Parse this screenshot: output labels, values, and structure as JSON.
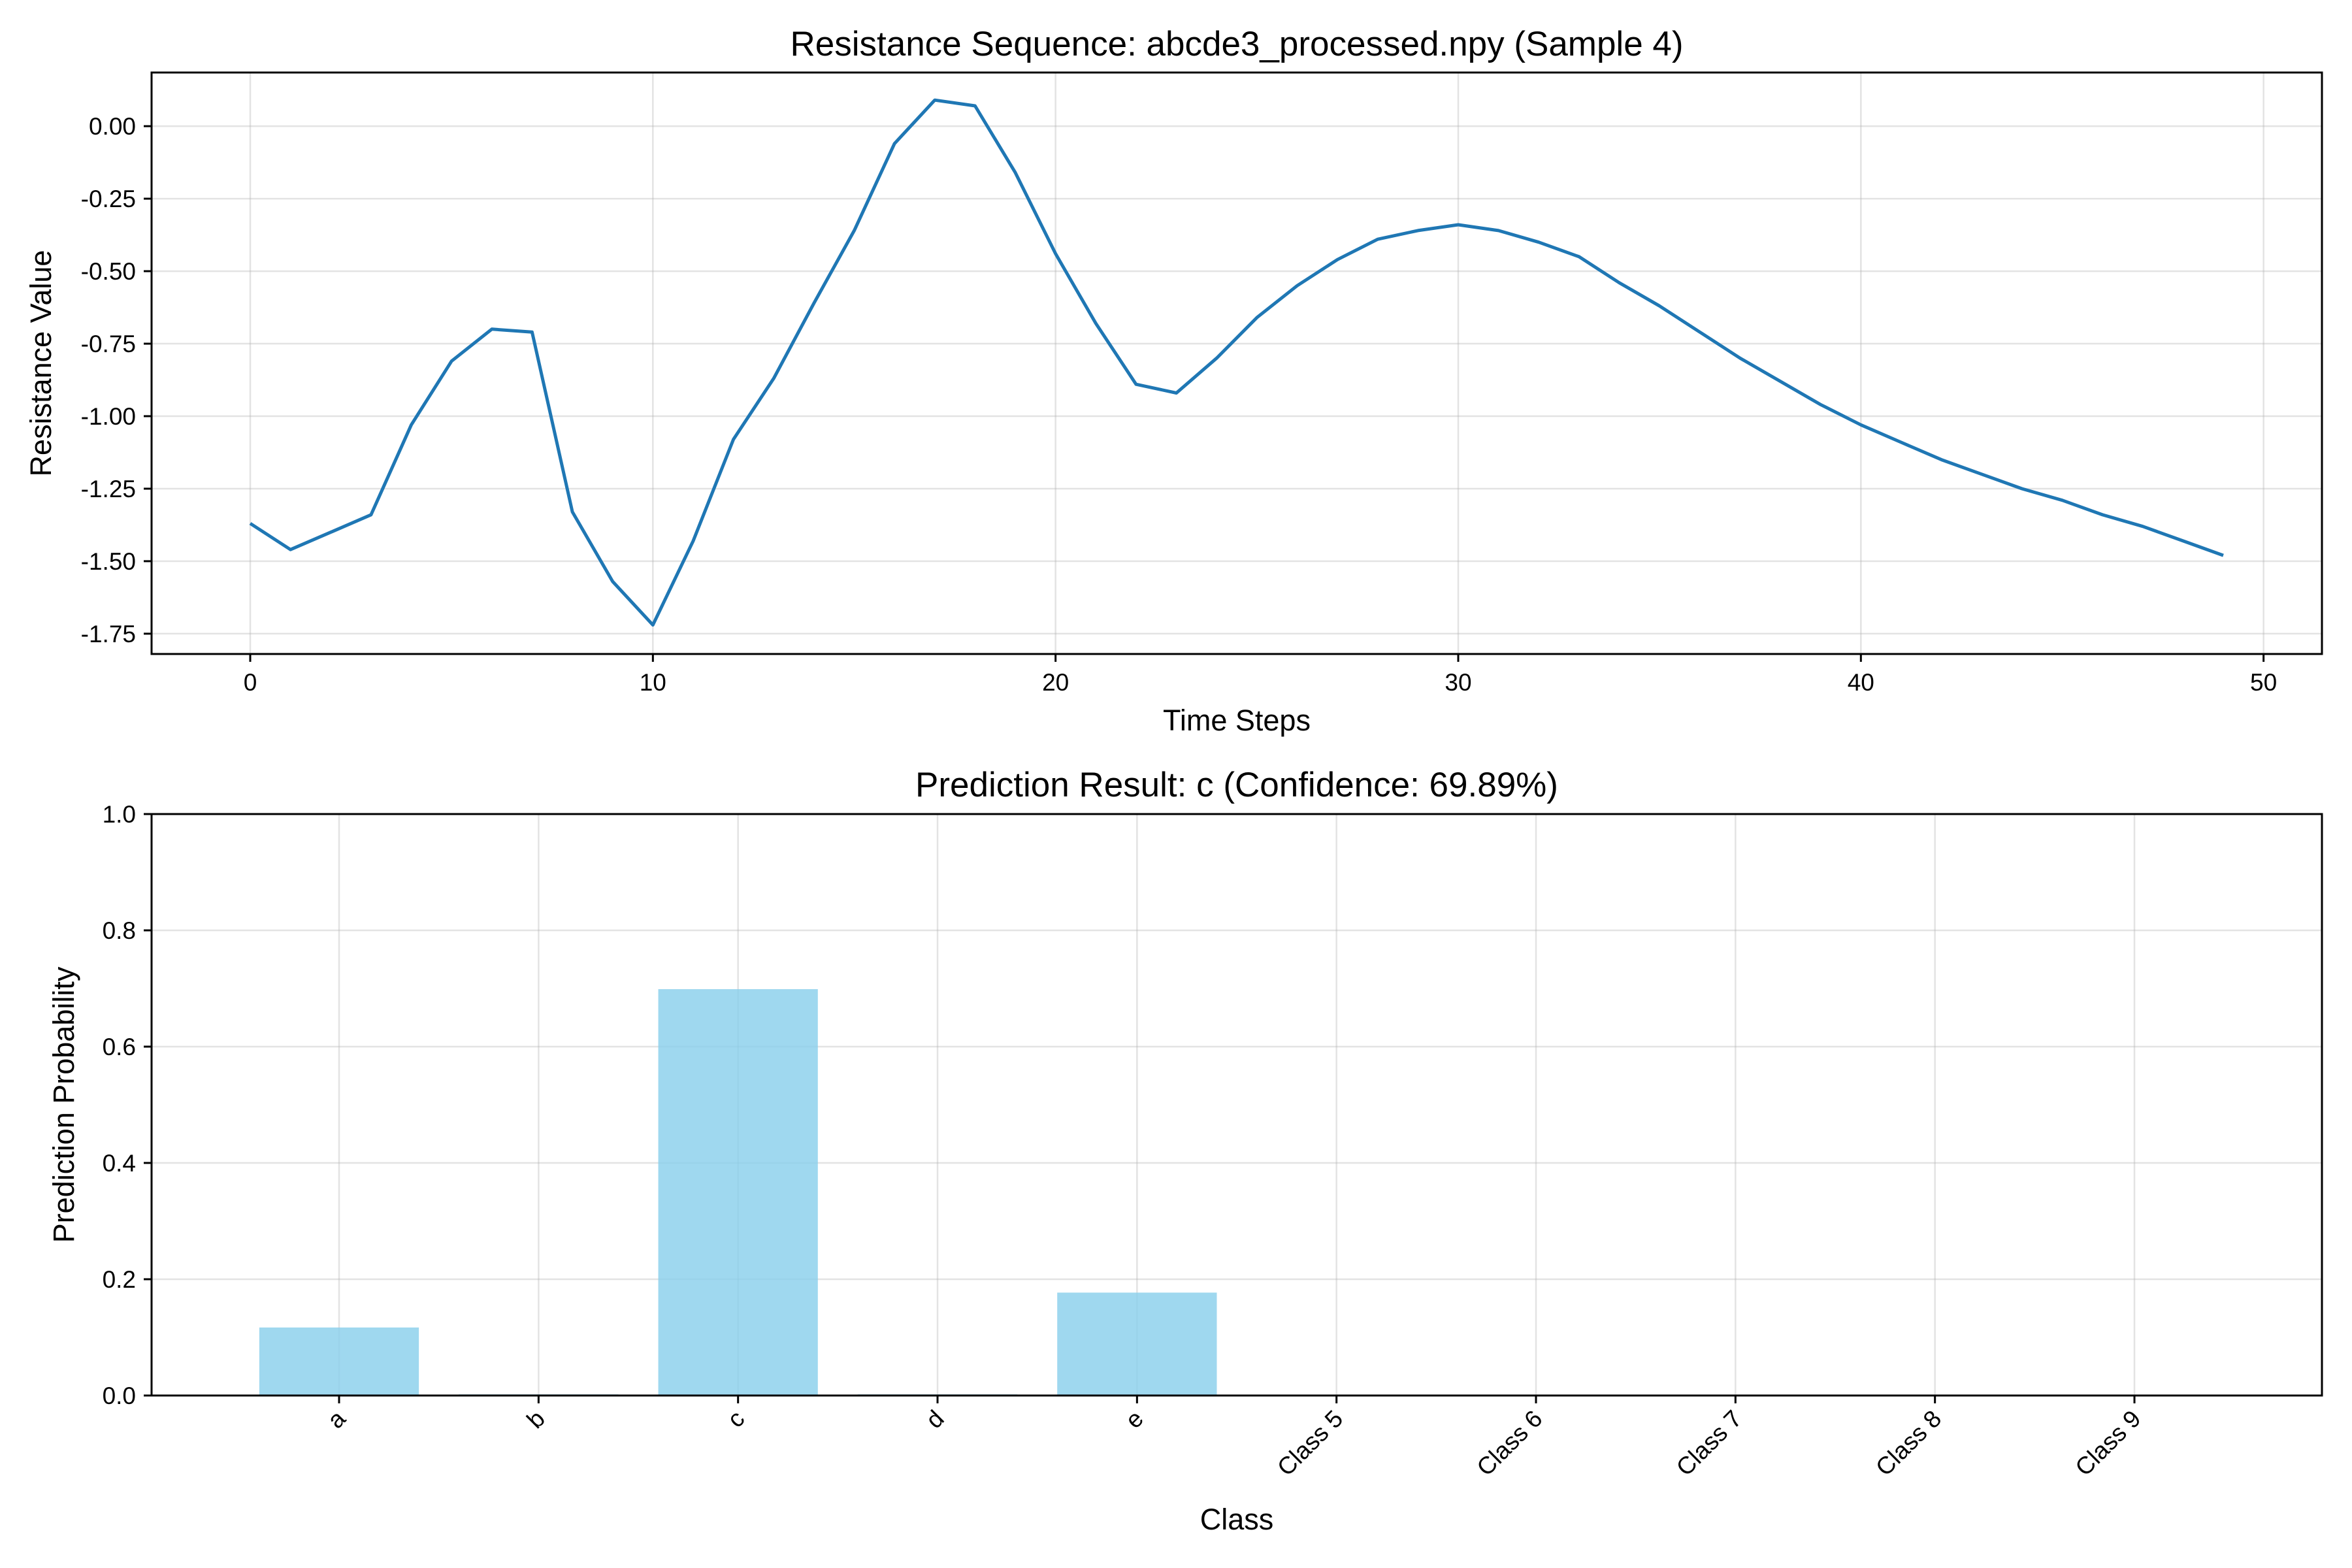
{
  "colors": {
    "line": "#1f77b4",
    "bar": "#87ceeb"
  },
  "chart_data": [
    {
      "type": "line",
      "title": "Resistance Sequence: abcde3_processed.npy (Sample 4)",
      "xlabel": "Time Steps",
      "ylabel": "Resistance Value",
      "xlim": [
        -2.45,
        51.45
      ],
      "ylim": [
        -1.82,
        0.185
      ],
      "xticks": [
        0,
        10,
        20,
        30,
        40,
        50
      ],
      "yticks": [
        0.0,
        -0.25,
        -0.5,
        -0.75,
        -1.0,
        -1.25,
        -1.5,
        -1.75
      ],
      "ytick_labels": [
        "0.00",
        "-0.25",
        "-0.50",
        "-0.75",
        "-1.00",
        "-1.25",
        "-1.50",
        "-1.75"
      ],
      "grid": true,
      "x": [
        0,
        1,
        2,
        3,
        4,
        5,
        6,
        7,
        8,
        9,
        10,
        11,
        12,
        13,
        14,
        15,
        16,
        17,
        18,
        19,
        20,
        21,
        22,
        23,
        24,
        25,
        26,
        27,
        28,
        29,
        30,
        31,
        32,
        33,
        34,
        35,
        36,
        37,
        38,
        39,
        40,
        41,
        42,
        43,
        44,
        45,
        46,
        47,
        48,
        49
      ],
      "y": [
        -1.37,
        -1.46,
        -1.4,
        -1.34,
        -1.03,
        -0.81,
        -0.7,
        -0.71,
        -1.33,
        -1.57,
        -1.72,
        -1.43,
        -1.08,
        -0.87,
        -0.61,
        -0.36,
        -0.06,
        0.09,
        0.07,
        -0.16,
        -0.44,
        -0.68,
        -0.89,
        -0.92,
        -0.8,
        -0.66,
        -0.55,
        -0.46,
        -0.39,
        -0.36,
        -0.34,
        -0.36,
        -0.4,
        -0.45,
        -0.54,
        -0.62,
        -0.71,
        -0.8,
        -0.88,
        -0.96,
        -1.03,
        -1.09,
        -1.15,
        -1.2,
        -1.25,
        -1.29,
        -1.34,
        -1.38,
        -1.43,
        -1.48
      ]
    },
    {
      "type": "bar",
      "title": "Prediction Result: c (Confidence: 69.89%)",
      "xlabel": "Class",
      "ylabel": "Prediction Probability",
      "ylim": [
        0,
        1.0
      ],
      "yticks": [
        0.0,
        0.2,
        0.4,
        0.6,
        0.8,
        1.0
      ],
      "ytick_labels": [
        "0.0",
        "0.2",
        "0.4",
        "0.6",
        "0.8",
        "1.0"
      ],
      "grid": true,
      "categories": [
        "a",
        "b",
        "c",
        "d",
        "e",
        "Class 5",
        "Class 6",
        "Class 7",
        "Class 8",
        "Class 9"
      ],
      "values": [
        0.117,
        0.002,
        0.6989,
        0.002,
        0.177,
        0,
        0,
        0,
        0,
        0
      ]
    }
  ]
}
